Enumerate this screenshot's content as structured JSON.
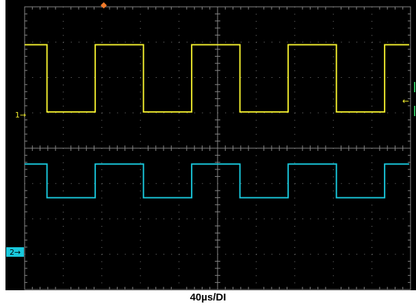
{
  "scope": {
    "timebase_label": "40µs/DI",
    "grid": {
      "divisions_x": 10,
      "divisions_y": 8
    },
    "colors": {
      "background": "#000000",
      "grid": "#8a8a8a",
      "channel_1": "#f2ee2e",
      "channel_2": "#19c8dc",
      "trigger_marker": "#f07a2a"
    },
    "channels": [
      {
        "id": "1",
        "label": "1",
        "color": "#f2ee2e",
        "waveform": "square",
        "period_divisions": 2.5,
        "first_falling_edge_div": 0.65,
        "duty": 0.5
      },
      {
        "id": "2",
        "label": "2",
        "color": "#19c8dc",
        "waveform": "square",
        "period_divisions": 2.5,
        "first_falling_edge_div": 0.65,
        "duty": 0.5
      }
    ],
    "trigger_level_marker": {
      "glyph": "←"
    },
    "trigger_position_marker": {
      "glyph": "◆"
    }
  }
}
